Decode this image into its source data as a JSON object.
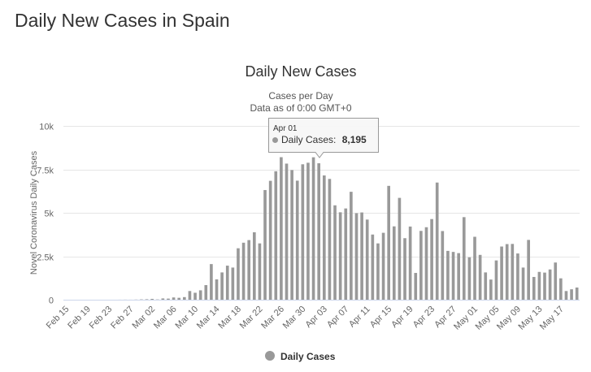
{
  "page": {
    "title": "Daily New Cases in Spain"
  },
  "tooltip": {
    "date": "Apr 01",
    "label": "Daily Cases:",
    "value": "8,195"
  },
  "colors": {
    "bar": "#999999",
    "grid": "#e6e6e6",
    "text": "#333333",
    "axis_text": "#666666"
  },
  "chart_data": {
    "type": "bar",
    "title": "Daily New Cases",
    "subtitle": [
      "Cases per Day",
      "Data as of 0:00 GMT+0"
    ],
    "ylabel": "Novel Coronavirus Daily Cases",
    "ylim": [
      0,
      10000
    ],
    "yticks": [
      {
        "value": 0,
        "label": "0"
      },
      {
        "value": 2500,
        "label": "2.5k"
      },
      {
        "value": 5000,
        "label": "5k"
      },
      {
        "value": 7500,
        "label": "7.5k"
      },
      {
        "value": 10000,
        "label": "10k"
      }
    ],
    "xtick_labels": [
      "Feb 15",
      "Feb 19",
      "Feb 23",
      "Feb 27",
      "Mar 02",
      "Mar 06",
      "Mar 10",
      "Mar 14",
      "Mar 18",
      "Mar 22",
      "Mar 26",
      "Mar 30",
      "Apr 03",
      "Apr 07",
      "Apr 11",
      "Apr 15",
      "Apr 19",
      "Apr 23",
      "Apr 27",
      "May 01",
      "May 05",
      "May 09",
      "May 13",
      "May 17"
    ],
    "grid": true,
    "legend": {
      "position": "bottom-center",
      "entries": [
        "Daily Cases"
      ]
    },
    "series": [
      {
        "name": "Daily Cases",
        "categories": [
          "Feb 15",
          "Feb 16",
          "Feb 17",
          "Feb 18",
          "Feb 19",
          "Feb 20",
          "Feb 21",
          "Feb 22",
          "Feb 23",
          "Feb 24",
          "Feb 25",
          "Feb 26",
          "Feb 27",
          "Feb 28",
          "Feb 29",
          "Mar 01",
          "Mar 02",
          "Mar 03",
          "Mar 04",
          "Mar 05",
          "Mar 06",
          "Mar 07",
          "Mar 08",
          "Mar 09",
          "Mar 10",
          "Mar 11",
          "Mar 12",
          "Mar 13",
          "Mar 14",
          "Mar 15",
          "Mar 16",
          "Mar 17",
          "Mar 18",
          "Mar 19",
          "Mar 20",
          "Mar 21",
          "Mar 22",
          "Mar 23",
          "Mar 24",
          "Mar 25",
          "Mar 26",
          "Mar 27",
          "Mar 28",
          "Mar 29",
          "Mar 30",
          "Mar 31",
          "Apr 01",
          "Apr 02",
          "Apr 03",
          "Apr 04",
          "Apr 05",
          "Apr 06",
          "Apr 07",
          "Apr 08",
          "Apr 09",
          "Apr 10",
          "Apr 11",
          "Apr 12",
          "Apr 13",
          "Apr 14",
          "Apr 15",
          "Apr 16",
          "Apr 17",
          "Apr 18",
          "Apr 19",
          "Apr 20",
          "Apr 21",
          "Apr 22",
          "Apr 23",
          "Apr 24",
          "Apr 25",
          "Apr 26",
          "Apr 27",
          "Apr 28",
          "Apr 29",
          "Apr 30",
          "May 01",
          "May 02",
          "May 03",
          "May 04",
          "May 05",
          "May 06",
          "May 07",
          "May 08",
          "May 09",
          "May 10",
          "May 11",
          "May 12",
          "May 13",
          "May 14",
          "May 15",
          "May 16",
          "May 17",
          "May 18",
          "May 19",
          "May 20"
        ],
        "values": [
          0,
          0,
          0,
          0,
          0,
          0,
          0,
          0,
          0,
          0,
          2,
          4,
          2,
          8,
          18,
          26,
          48,
          15,
          74,
          64,
          130,
          110,
          150,
          500,
          400,
          540,
          840,
          2050,
          1170,
          1570,
          1960,
          1850,
          2960,
          3280,
          3430,
          3880,
          3240,
          6310,
          6840,
          7390,
          8200,
          7830,
          7460,
          6850,
          7790,
          7880,
          8195,
          7850,
          7150,
          6950,
          5430,
          5030,
          5250,
          6210,
          4980,
          5020,
          4610,
          3750,
          3240,
          3850,
          6550,
          4220,
          5860,
          3540,
          4210,
          1540,
          3960,
          4170,
          4640,
          6740,
          3950,
          2810,
          2750,
          2680,
          4750,
          2440,
          3620,
          2580,
          1570,
          1160,
          2260,
          3060,
          3200,
          3210,
          2660,
          1850,
          3440,
          1310,
          1600,
          1560,
          1740,
          2140,
          1230,
          500,
          600,
          700
        ]
      }
    ]
  }
}
